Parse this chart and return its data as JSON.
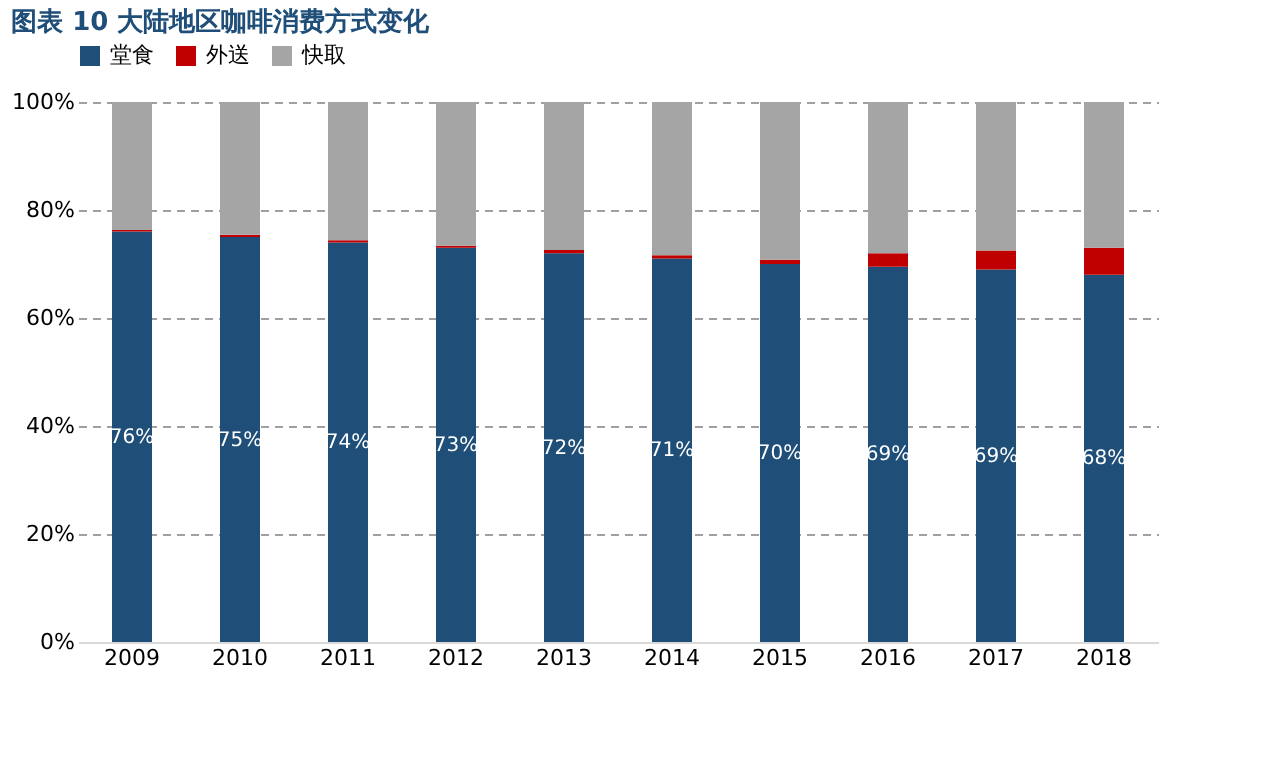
{
  "chart_data": {
    "type": "bar",
    "title": "图表 10   大陆地区咖啡消费方式变化",
    "stacked": true,
    "categories": [
      "2009",
      "2010",
      "2011",
      "2012",
      "2013",
      "2014",
      "2015",
      "2016",
      "2017",
      "2018"
    ],
    "series": [
      {
        "name": "堂食",
        "color": "#1f4e79",
        "values": [
          76,
          75,
          74,
          73,
          72,
          71,
          70,
          69.5,
          69,
          68
        ],
        "value_labels": [
          "76%",
          "75%",
          "74%",
          "73%",
          "72%",
          "71%",
          "70%",
          "69%",
          "69%",
          "68%"
        ]
      },
      {
        "name": "外送",
        "color": "#c00000",
        "values": [
          0.3,
          0.4,
          0.4,
          0.4,
          0.6,
          0.6,
          0.8,
          2.5,
          3.5,
          5
        ]
      },
      {
        "name": "快取",
        "color": "#a5a5a5",
        "values": [
          23.7,
          24.6,
          25.6,
          26.6,
          27.4,
          28.4,
          29.2,
          28,
          27.5,
          27
        ]
      }
    ],
    "ylim": [
      0,
      100
    ],
    "yticks": [
      {
        "value": 0,
        "label": "0%"
      },
      {
        "value": 20,
        "label": "20%"
      },
      {
        "value": 40,
        "label": "40%"
      },
      {
        "value": 60,
        "label": "60%"
      },
      {
        "value": 80,
        "label": "80%"
      },
      {
        "value": 100,
        "label": "100%"
      }
    ],
    "grid": "y",
    "line_style": "dashed",
    "legend": "top"
  }
}
